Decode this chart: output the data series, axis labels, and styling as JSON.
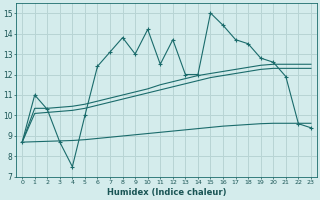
{
  "xlabel": "Humidex (Indice chaleur)",
  "bg_color": "#d4ecec",
  "grid_color": "#b8d4d4",
  "line_color": "#1a6b6b",
  "xlim": [
    -0.5,
    23.5
  ],
  "ylim": [
    7,
    15.5
  ],
  "x_ticks": [
    0,
    1,
    2,
    3,
    4,
    5,
    6,
    7,
    8,
    9,
    10,
    11,
    12,
    13,
    14,
    15,
    16,
    17,
    18,
    19,
    20,
    21,
    22,
    23
  ],
  "yticks": [
    7,
    8,
    9,
    10,
    11,
    12,
    13,
    14,
    15
  ],
  "curve1_x": [
    0,
    1,
    2,
    3,
    4,
    5,
    6,
    7,
    8,
    9,
    10,
    11,
    12,
    13,
    14,
    15,
    16,
    17,
    18,
    19,
    20,
    21,
    22,
    23
  ],
  "curve1_y": [
    8.7,
    11.0,
    10.3,
    8.7,
    7.5,
    10.0,
    12.4,
    13.1,
    13.8,
    13.0,
    14.2,
    12.5,
    13.7,
    12.0,
    12.0,
    15.0,
    14.4,
    13.7,
    13.5,
    12.8,
    12.6,
    11.9,
    9.6,
    9.4
  ],
  "curve2_x": [
    0,
    1,
    2,
    3,
    4,
    5,
    6,
    7,
    8,
    9,
    10,
    11,
    12,
    13,
    14,
    15,
    16,
    17,
    18,
    19,
    20,
    21,
    22,
    23
  ],
  "curve2_y": [
    8.7,
    10.35,
    10.35,
    10.4,
    10.45,
    10.55,
    10.7,
    10.85,
    11.0,
    11.15,
    11.3,
    11.5,
    11.65,
    11.8,
    11.95,
    12.05,
    12.15,
    12.25,
    12.35,
    12.45,
    12.5,
    12.5,
    12.5,
    12.5
  ],
  "curve3_x": [
    0,
    1,
    2,
    3,
    4,
    5,
    6,
    7,
    8,
    9,
    10,
    11,
    12,
    13,
    14,
    15,
    16,
    17,
    18,
    19,
    20,
    21,
    22,
    23
  ],
  "curve3_y": [
    8.7,
    10.1,
    10.15,
    10.2,
    10.25,
    10.35,
    10.5,
    10.65,
    10.8,
    10.95,
    11.1,
    11.25,
    11.4,
    11.55,
    11.7,
    11.85,
    11.95,
    12.05,
    12.15,
    12.25,
    12.3,
    12.3,
    12.3,
    12.3
  ],
  "curve4_x": [
    0,
    1,
    2,
    3,
    4,
    5,
    6,
    7,
    8,
    9,
    10,
    11,
    12,
    13,
    14,
    15,
    16,
    17,
    18,
    19,
    20,
    21,
    22,
    23
  ],
  "curve4_y": [
    8.7,
    8.72,
    8.74,
    8.76,
    8.78,
    8.82,
    8.88,
    8.94,
    9.0,
    9.06,
    9.12,
    9.18,
    9.24,
    9.3,
    9.36,
    9.42,
    9.48,
    9.52,
    9.56,
    9.6,
    9.62,
    9.62,
    9.62,
    9.62
  ]
}
